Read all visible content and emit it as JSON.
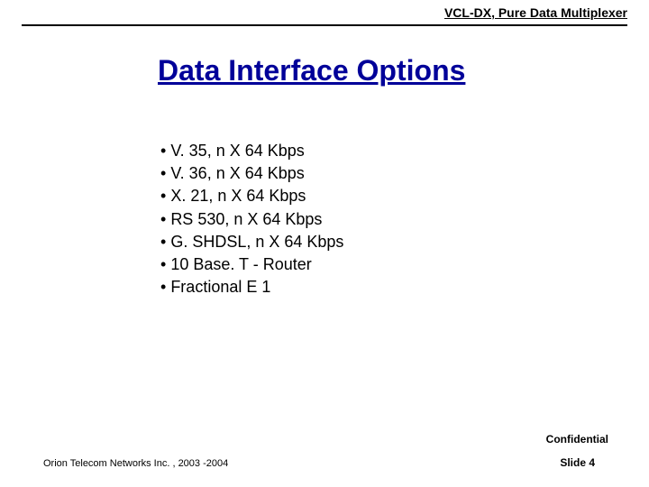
{
  "header": {
    "product_line": "VCL-DX, Pure Data Multiplexer"
  },
  "title": "Data Interface Options",
  "bullets": [
    "V. 35, n X 64 Kbps",
    "V. 36, n X 64 Kbps",
    "X. 21, n X 64 Kbps",
    "RS 530, n X 64 Kbps",
    "G. SHDSL, n X 64 Kbps",
    "10 Base. T - Router",
    "Fractional E 1"
  ],
  "footer": {
    "confidential": "Confidential",
    "company": "Orion Telecom Networks Inc. , 2003 -2004",
    "slide_label": "Slide 4"
  },
  "colors": {
    "title_color": "#000099",
    "text_color": "#000000",
    "background": "#ffffff",
    "rule_color": "#000000"
  }
}
